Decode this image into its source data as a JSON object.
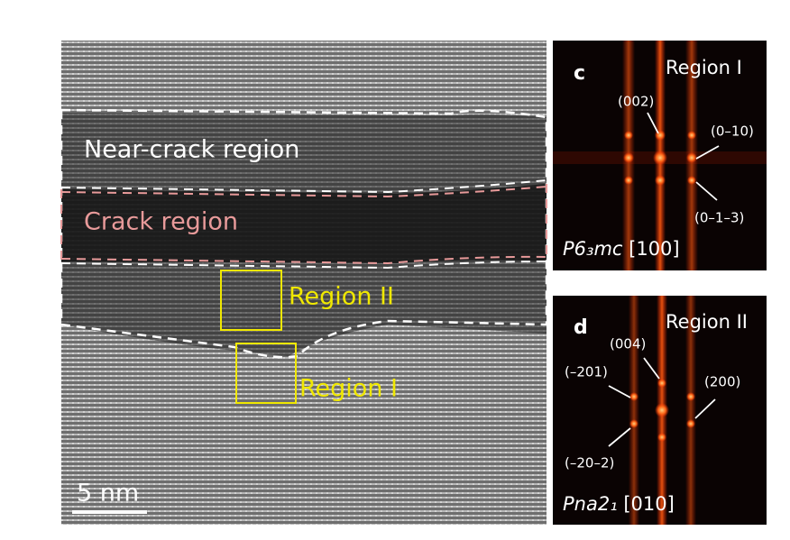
{
  "main_image": {
    "labels": [
      "Near-crack region",
      "Crack region",
      "Region II",
      "Region I"
    ],
    "scale_bar": "5 nm"
  },
  "panels": [
    {
      "letter": "c",
      "region": "Region I",
      "annotations": [
        "(002)",
        "(0–10)",
        "(0–1–3)"
      ],
      "space_group": "P6₃mc",
      "zone_axis": "[100]"
    },
    {
      "letter": "d",
      "region": "Region II",
      "annotations": [
        "(004)",
        "(–201)",
        "(200)",
        "(–20–2)"
      ],
      "space_group": "Pna2₁",
      "zone_axis": "[010]"
    }
  ]
}
